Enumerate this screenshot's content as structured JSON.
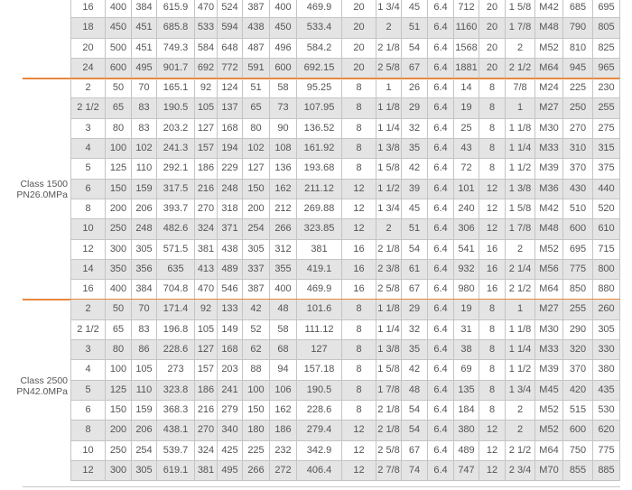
{
  "colors": {
    "accent_line": "#e8873e",
    "stripe": "#e4e4e4",
    "border": "#c4c4c4"
  },
  "sections": [
    {
      "label": [],
      "rows": [
        [
          "16",
          "400",
          "384",
          "615.9",
          "470",
          "524",
          "387",
          "400",
          "469.9",
          "20",
          "1 3/4",
          "45",
          "6.4",
          "712",
          "20",
          "1 5/8",
          "M42",
          "685",
          "695"
        ],
        [
          "18",
          "450",
          "451",
          "685.8",
          "533",
          "594",
          "438",
          "450",
          "533.4",
          "20",
          "2",
          "51",
          "6.4",
          "1160",
          "20",
          "1 7/8",
          "M48",
          "790",
          "805"
        ],
        [
          "20",
          "500",
          "451",
          "749.3",
          "584",
          "648",
          "487",
          "496",
          "584.2",
          "20",
          "2 1/8",
          "54",
          "6.4",
          "1568",
          "20",
          "2",
          "M52",
          "810",
          "825"
        ],
        [
          "24",
          "600",
          "495",
          "901.7",
          "692",
          "772",
          "591",
          "600",
          "692.15",
          "20",
          "2 5/8",
          "67",
          "6.4",
          "1881",
          "20",
          "2 1/2",
          "M64",
          "945",
          "965"
        ]
      ]
    },
    {
      "label": [
        "Class 1500",
        "PN26.0MPa"
      ],
      "rows": [
        [
          "2",
          "50",
          "70",
          "165.1",
          "92",
          "124",
          "51",
          "58",
          "95.25",
          "8",
          "1",
          "26",
          "6.4",
          "14",
          "8",
          "7/8",
          "M24",
          "225",
          "230"
        ],
        [
          "2 1/2",
          "65",
          "83",
          "190.5",
          "105",
          "137",
          "65",
          "73",
          "107.95",
          "8",
          "1 1/8",
          "29",
          "6.4",
          "19",
          "8",
          "1",
          "M27",
          "250",
          "255"
        ],
        [
          "3",
          "80",
          "83",
          "203.2",
          "127",
          "168",
          "80",
          "90",
          "136.52",
          "8",
          "1 1/4",
          "32",
          "6.4",
          "25",
          "8",
          "1 1/8",
          "M30",
          "270",
          "275"
        ],
        [
          "4",
          "100",
          "102",
          "241.3",
          "157",
          "194",
          "102",
          "108",
          "161.92",
          "8",
          "1 3/8",
          "35",
          "6.4",
          "43",
          "8",
          "1 1/4",
          "M33",
          "310",
          "315"
        ],
        [
          "5",
          "125",
          "110",
          "292.1",
          "186",
          "229",
          "127",
          "136",
          "193.68",
          "8",
          "1 5/8",
          "42",
          "6.4",
          "72",
          "8",
          "1 1/2",
          "M39",
          "370",
          "375"
        ],
        [
          "6",
          "150",
          "159",
          "317.5",
          "216",
          "248",
          "150",
          "162",
          "211.12",
          "12",
          "1 1/2",
          "39",
          "6.4",
          "101",
          "12",
          "1 3/8",
          "M36",
          "430",
          "440"
        ],
        [
          "8",
          "200",
          "206",
          "393.7",
          "270",
          "318",
          "200",
          "212",
          "269.88",
          "12",
          "1 3/4",
          "45",
          "6.4",
          "240",
          "12",
          "1 5/8",
          "M42",
          "510",
          "520"
        ],
        [
          "10",
          "250",
          "248",
          "482.6",
          "324",
          "371",
          "254",
          "266",
          "323.85",
          "12",
          "2",
          "51",
          "6.4",
          "306",
          "12",
          "1 7/8",
          "M48",
          "600",
          "610"
        ],
        [
          "12",
          "300",
          "305",
          "571.5",
          "381",
          "438",
          "305",
          "312",
          "381",
          "16",
          "2 1/8",
          "54",
          "6.4",
          "541",
          "16",
          "2",
          "M52",
          "695",
          "715"
        ],
        [
          "14",
          "350",
          "356",
          "635",
          "413",
          "489",
          "337",
          "355",
          "419.1",
          "16",
          "2 3/8",
          "61",
          "6.4",
          "932",
          "16",
          "2 1/4",
          "M56",
          "775",
          "800"
        ],
        [
          "16",
          "400",
          "384",
          "704.8",
          "470",
          "546",
          "387",
          "400",
          "469.9",
          "16",
          "2 5/8",
          "67",
          "6.4",
          "980",
          "16",
          "2 1/2",
          "M64",
          "850",
          "880"
        ]
      ]
    },
    {
      "label": [
        "Class 2500",
        "PN42.0MPa"
      ],
      "rows": [
        [
          "2",
          "50",
          "70",
          "171.4",
          "92",
          "133",
          "42",
          "48",
          "101.6",
          "8",
          "1 1/8",
          "29",
          "6.4",
          "19",
          "8",
          "1",
          "M27",
          "255",
          "260"
        ],
        [
          "2 1/2",
          "65",
          "83",
          "196.8",
          "105",
          "149",
          "52",
          "58",
          "111.12",
          "8",
          "1 1/4",
          "32",
          "6.4",
          "31",
          "8",
          "1 1/8",
          "M30",
          "290",
          "305"
        ],
        [
          "3",
          "80",
          "86",
          "228.6",
          "127",
          "168",
          "62",
          "68",
          "127",
          "8",
          "1 3/8",
          "35",
          "6.4",
          "38",
          "8",
          "1 1/4",
          "M33",
          "320",
          "330"
        ],
        [
          "4",
          "100",
          "105",
          "273",
          "157",
          "203",
          "88",
          "94",
          "157.18",
          "8",
          "1 5/8",
          "42",
          "6.4",
          "69",
          "8",
          "1 1/2",
          "M39",
          "370",
          "380"
        ],
        [
          "5",
          "125",
          "110",
          "323.8",
          "186",
          "241",
          "100",
          "106",
          "190.5",
          "8",
          "1 7/8",
          "48",
          "6.4",
          "135",
          "8",
          "1 3/4",
          "M45",
          "420",
          "435"
        ],
        [
          "6",
          "150",
          "159",
          "368.3",
          "216",
          "279",
          "150",
          "162",
          "228.6",
          "8",
          "2 1/8",
          "54",
          "6.4",
          "184",
          "8",
          "2",
          "M52",
          "515",
          "530"
        ],
        [
          "8",
          "200",
          "206",
          "438.1",
          "270",
          "340",
          "180",
          "186",
          "279.4",
          "12",
          "2 1/8",
          "54",
          "6.4",
          "380",
          "12",
          "2",
          "M52",
          "600",
          "620"
        ],
        [
          "10",
          "250",
          "254",
          "539.7",
          "324",
          "425",
          "225",
          "232",
          "342.9",
          "12",
          "2 5/8",
          "67",
          "6.4",
          "489",
          "12",
          "2 1/2",
          "M64",
          "750",
          "775"
        ],
        [
          "12",
          "300",
          "305",
          "619.1",
          "381",
          "495",
          "266",
          "272",
          "406.4",
          "12",
          "2 7/8",
          "74",
          "6.4",
          "747",
          "12",
          "2 3/4",
          "M70",
          "855",
          "885"
        ]
      ]
    }
  ]
}
